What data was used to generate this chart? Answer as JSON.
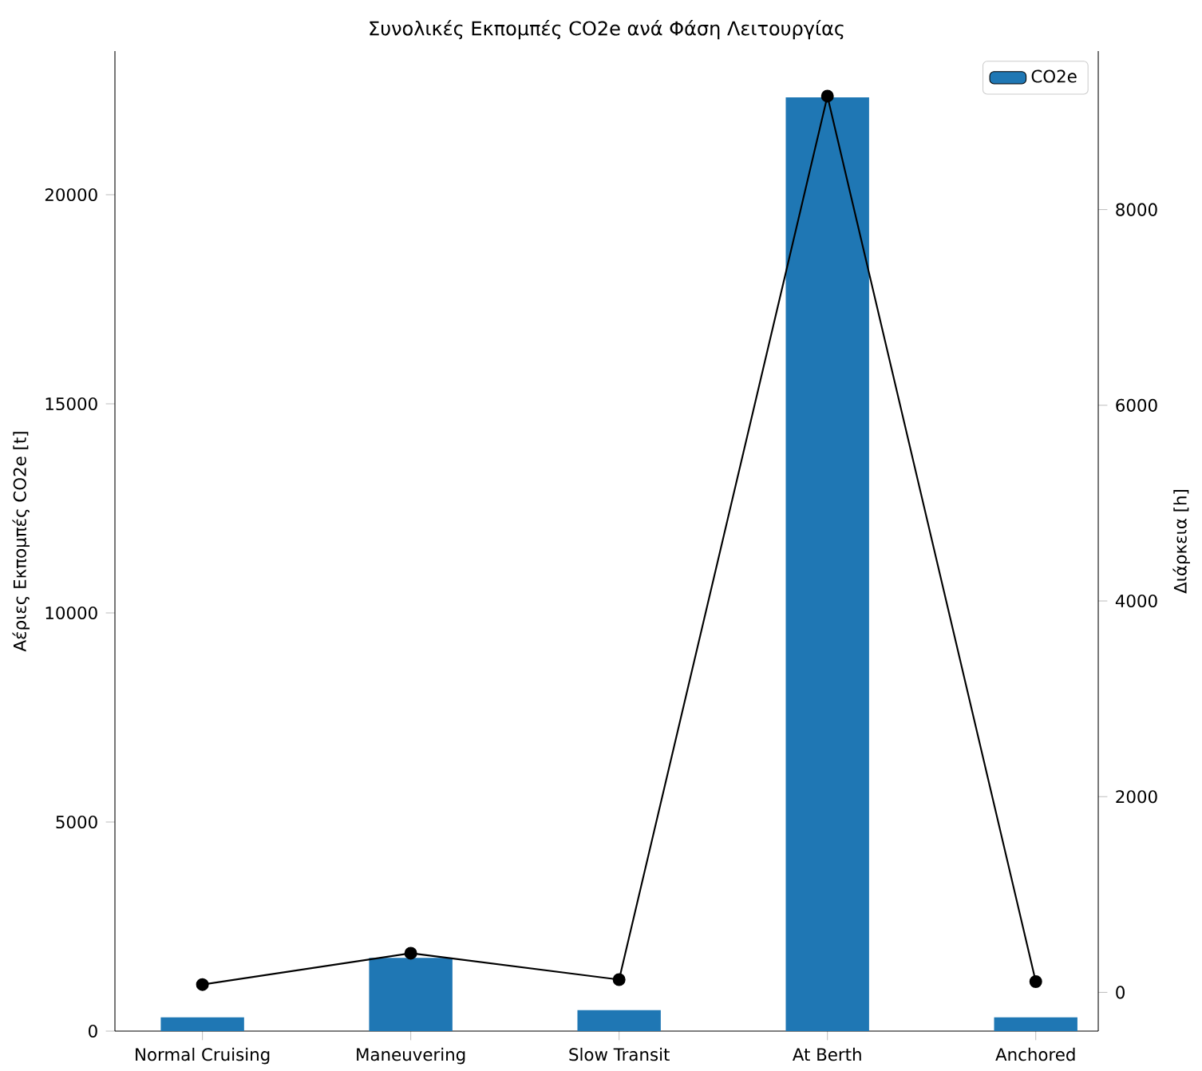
{
  "chart_data": {
    "type": "bar",
    "title": "Συνολικές Εκπομπές CO2e ανά Φάση Λειτουργίας",
    "ylabel": "Αέριες Εκπομπές CO2e [t]",
    "y2label": "Διάρκεια [h]",
    "categories": [
      "Normal Cruising",
      "Maneuvering",
      "Slow Transit",
      "At Berth",
      "Anchored"
    ],
    "series": [
      {
        "name": "CO2e",
        "color": "#1f77b4",
        "values": [
          330,
          1750,
          500,
          22330,
          330
        ]
      },
      {
        "type": "line",
        "axis": "y2",
        "color": "#000000",
        "marker": "circle",
        "values": [
          80,
          400,
          130,
          9160,
          110
        ]
      }
    ],
    "ylim": [
      0,
      23435
    ],
    "yticks": [
      0,
      5000,
      10000,
      15000,
      20000
    ],
    "y2lim": [
      -396,
      9620
    ],
    "y2ticks": [
      0,
      2000,
      4000,
      6000,
      8000
    ],
    "legend": "top right"
  }
}
